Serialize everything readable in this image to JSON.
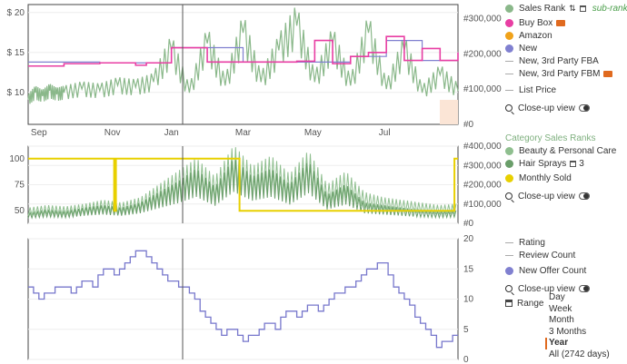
{
  "chart_data": [
    {
      "type": "line",
      "panel": "price-sales-rank",
      "x_ticks": [
        "Sep",
        "Nov",
        "Jan",
        "Mar",
        "May",
        "Jul"
      ],
      "y_left_ticks": [
        "$ 20",
        "$ 15",
        "$ 10"
      ],
      "y_left_values": [
        20,
        15,
        10
      ],
      "y_left_range": [
        6,
        21
      ],
      "y_right_ticks": [
        "#300,000",
        "#200,000",
        "#100,000",
        "#0"
      ],
      "y_right_values": [
        300000,
        200000,
        100000,
        0
      ],
      "y_right_range": [
        0,
        340000
      ],
      "series": [
        {
          "name": "Sales Rank",
          "axis": "right",
          "x": [
            0,
            0.2,
            0.4,
            0.6,
            0.8,
            1,
            1.5,
            2,
            2.5,
            3,
            3.5,
            4,
            4.5,
            5,
            5.5,
            6,
            6.5,
            7,
            7.5,
            8,
            8.5,
            9,
            9.5,
            10,
            10.5,
            11,
            11.5,
            12
          ],
          "values": [
            70000,
            90000,
            80000,
            95000,
            85000,
            90000,
            100000,
            95000,
            110000,
            105000,
            120000,
            210000,
            90000,
            230000,
            110000,
            260000,
            120000,
            210000,
            280000,
            120000,
            230000,
            110000,
            260000,
            100000,
            210000,
            90000,
            140000,
            95000
          ]
        },
        {
          "name": "Buy Box",
          "axis": "left",
          "x": [
            0,
            1,
            2,
            2.5,
            3,
            3.3,
            3.6,
            4,
            5,
            6,
            7,
            7.5,
            8,
            8.5,
            9,
            9.5,
            10,
            10.5,
            11,
            11.5,
            12
          ],
          "values": [
            13.3,
            13.6,
            13.7,
            13.7,
            13.4,
            13.7,
            13.7,
            15.6,
            13.8,
            13.8,
            13.8,
            13.9,
            16.5,
            13.6,
            14.5,
            15,
            17,
            14,
            15.5,
            14,
            15
          ]
        },
        {
          "name": "Amazon",
          "axis": "left",
          "x": [],
          "values": []
        },
        {
          "name": "New",
          "axis": "left",
          "x": [
            0,
            2,
            4,
            6,
            7,
            8,
            9,
            10,
            11,
            12
          ],
          "values": [
            13.8,
            13.7,
            15.6,
            13.8,
            13.8,
            13.8,
            14.5,
            16.5,
            14,
            15
          ]
        }
      ]
    },
    {
      "type": "line",
      "panel": "category-sales-ranks",
      "y_left_ticks": [
        "100",
        "75",
        "50"
      ],
      "y_left_values": [
        100,
        75,
        50
      ],
      "y_left_range": [
        38,
        112
      ],
      "y_right_ticks": [
        "#400,000",
        "#300,000",
        "#200,000",
        "#100,000",
        "#0"
      ],
      "y_right_values": [
        400000,
        300000,
        200000,
        100000,
        0
      ],
      "y_right_range": [
        0,
        400000
      ],
      "series": [
        {
          "name": "Beauty & Personal Care",
          "values": [
            60000,
            70000,
            65000,
            75000,
            90000,
            80000,
            100000,
            150000,
            200000,
            250000,
            180000,
            300000,
            220000,
            260000,
            190000,
            280000,
            150000,
            200000,
            120000,
            100000,
            90000,
            80000,
            70000,
            75000
          ]
        },
        {
          "name": "Hair Sprays",
          "values": [
            40000,
            50000,
            45000,
            60000,
            70000,
            60000,
            80000,
            120000,
            160000,
            210000,
            140000,
            250000,
            180000,
            210000,
            150000,
            240000,
            110000,
            150000,
            80000,
            70000,
            60000,
            50000,
            45000,
            50000
          ]
        },
        {
          "name": "Monthly Sold",
          "x": [
            0,
            2.4,
            2.4,
            2.45,
            2.45,
            5.9,
            5.9,
            7.2,
            7.2,
            9.6,
            9.6,
            11.9,
            11.9,
            12
          ],
          "values": [
            100,
            100,
            50,
            50,
            100,
            100,
            50,
            50,
            50,
            50,
            50,
            50,
            100,
            100
          ]
        }
      ]
    },
    {
      "type": "line",
      "panel": "offer-count",
      "y_right_ticks": [
        "20",
        "15",
        "10",
        "5",
        "0"
      ],
      "y_right_values": [
        20,
        15,
        10,
        5,
        0
      ],
      "y_right_range": [
        0,
        20
      ],
      "series": [
        {
          "name": "New Offer Count",
          "x": [
            0,
            0.3,
            0.6,
            0.9,
            1.2,
            1.5,
            1.8,
            2.1,
            2.4,
            2.7,
            3.0,
            3.3,
            3.6,
            3.9,
            4.2,
            4.5,
            4.8,
            5.1,
            5.4,
            5.7,
            6.0,
            6.3,
            6.6,
            6.9,
            7.2,
            7.5,
            7.8,
            8.1,
            8.4,
            8.7,
            9.0,
            9.3,
            9.6,
            9.9,
            10.2,
            10.5,
            10.8,
            11.1,
            11.4,
            11.7,
            12
          ],
          "values": [
            12,
            10,
            11,
            12,
            11,
            13,
            12,
            15,
            14,
            16,
            18,
            17,
            15,
            13,
            12,
            11,
            8,
            6,
            4,
            5,
            3,
            4,
            6,
            5,
            8,
            7,
            9,
            8,
            10,
            11,
            12,
            14,
            15,
            16,
            12,
            10,
            7,
            5,
            2,
            3,
            4
          ]
        }
      ]
    }
  ],
  "legend": {
    "sales_rank": "Sales Rank",
    "subranks": "sub-ranks",
    "buy_box": "Buy Box",
    "amazon": "Amazon",
    "new": "New",
    "new_3p_fba": "New, 3rd Party FBA",
    "new_3p_fbm": "New, 3rd Party FBM",
    "list_price": "List Price",
    "closeup1": "Close-up view",
    "category_header": "Category Sales Ranks",
    "beauty": "Beauty & Personal Care",
    "hair_sprays": "Hair Sprays",
    "hair_sprays_count": "3",
    "monthly_sold": "Monthly Sold",
    "closeup2": "Close-up view",
    "rating": "Rating",
    "review_count": "Review Count",
    "new_offer_count": "New Offer Count",
    "closeup3": "Close-up view",
    "range": "Range"
  },
  "range_options": [
    "Day",
    "Week",
    "Month",
    "3 Months",
    "Year",
    "All (2742 days)"
  ],
  "range_selected": "Year",
  "colors": {
    "sales_rank": "#8ab88a",
    "buy_box": "#e83ea3",
    "amazon": "#f0a21a",
    "new": "#8080d0",
    "monthly_sold": "#e8d000",
    "beauty": "#8fbf8f",
    "hair_sprays": "#6a9e6a",
    "offer": "#7777cc",
    "category_header": "#7fb07f"
  }
}
